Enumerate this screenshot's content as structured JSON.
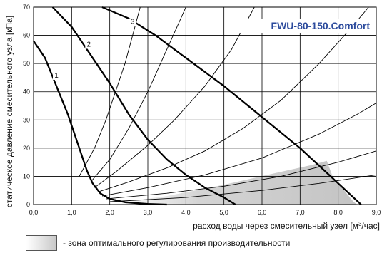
{
  "chart_data": {
    "type": "line",
    "title": "FWU-80-150.Comfort",
    "title_color": "#2b4a9c",
    "xlabel": "расход воды через смесительный узел [м",
    "xlabel_sup": "3",
    "xlabel_end": "/час]",
    "ylabel": "статическое давление смесительного узла [кПа]",
    "xlim": [
      0,
      9
    ],
    "ylim": [
      0,
      70
    ],
    "x_ticks": [
      "0,0",
      "1,0",
      "2,0",
      "3,0",
      "4,0",
      "5,0",
      "6,0",
      "7,0",
      "8,0",
      "9,0"
    ],
    "y_ticks": [
      "0",
      "10",
      "20",
      "30",
      "40",
      "50",
      "60",
      "70"
    ],
    "grid": true,
    "pump_curves": [
      {
        "label": "1",
        "label_at": [
          0.6,
          45
        ],
        "points": [
          [
            0,
            58
          ],
          [
            0.3,
            52
          ],
          [
            0.6,
            42
          ],
          [
            0.9,
            32
          ],
          [
            1.1,
            24
          ],
          [
            1.25,
            18
          ],
          [
            1.4,
            12
          ],
          [
            1.55,
            7.5
          ],
          [
            1.75,
            4
          ],
          [
            2.0,
            2
          ],
          [
            2.4,
            0.8
          ],
          [
            3.0,
            0.2
          ],
          [
            3.5,
            0
          ]
        ]
      },
      {
        "label": "2",
        "label_at": [
          1.45,
          56
        ],
        "points": [
          [
            0.5,
            70
          ],
          [
            1.0,
            63
          ],
          [
            1.55,
            52
          ],
          [
            2.0,
            43
          ],
          [
            2.5,
            32
          ],
          [
            3.0,
            23
          ],
          [
            3.5,
            16
          ],
          [
            4.0,
            10.5
          ],
          [
            4.5,
            6
          ],
          [
            5.0,
            2.5
          ],
          [
            5.3,
            0
          ]
        ]
      },
      {
        "label": "3",
        "label_at": [
          2.6,
          64
        ],
        "points": [
          [
            1.8,
            70
          ],
          [
            2.5,
            66
          ],
          [
            3.2,
            60
          ],
          [
            4.0,
            52
          ],
          [
            5.0,
            42
          ],
          [
            6.0,
            31
          ],
          [
            7.0,
            20
          ],
          [
            7.8,
            10
          ],
          [
            8.6,
            0
          ]
        ]
      }
    ],
    "system_curves": [
      {
        "points": [
          [
            1.2,
            10
          ],
          [
            1.6,
            20
          ],
          [
            1.9,
            30
          ],
          [
            2.15,
            40
          ],
          [
            2.4,
            50
          ],
          [
            2.6,
            60
          ],
          [
            2.8,
            70
          ]
        ]
      },
      {
        "points": [
          [
            1.5,
            8
          ],
          [
            2.0,
            16
          ],
          [
            2.5,
            27
          ],
          [
            3.0,
            40
          ],
          [
            3.4,
            52
          ],
          [
            3.8,
            64
          ],
          [
            4.0,
            70
          ]
        ]
      },
      {
        "points": [
          [
            1.6,
            6
          ],
          [
            2.2,
            12
          ],
          [
            3.0,
            21
          ],
          [
            3.7,
            30
          ],
          [
            4.5,
            42
          ],
          [
            5.2,
            55
          ],
          [
            5.8,
            70
          ]
        ]
      },
      {
        "points": [
          [
            1.7,
            4.5
          ],
          [
            2.5,
            8
          ],
          [
            3.5,
            13
          ],
          [
            4.5,
            19
          ],
          [
            5.5,
            27
          ],
          [
            6.5,
            37
          ],
          [
            7.5,
            50
          ],
          [
            8.3,
            62
          ],
          [
            8.8,
            70
          ]
        ]
      },
      {
        "points": [
          [
            1.8,
            3
          ],
          [
            3.0,
            6
          ],
          [
            4.5,
            10.5
          ],
          [
            6.0,
            16.5
          ],
          [
            7.5,
            25
          ],
          [
            8.5,
            32
          ],
          [
            9.0,
            36
          ]
        ]
      },
      {
        "points": [
          [
            1.9,
            2
          ],
          [
            3.5,
            4
          ],
          [
            5.0,
            6.5
          ],
          [
            6.5,
            10
          ],
          [
            8.0,
            15
          ],
          [
            9.0,
            19
          ]
        ]
      },
      {
        "points": [
          [
            2.0,
            1
          ],
          [
            4.0,
            2.5
          ],
          [
            6.0,
            5
          ],
          [
            7.5,
            7.5
          ],
          [
            9.0,
            10.5
          ]
        ]
      }
    ],
    "optimal_zone": {
      "points": [
        [
          2.1,
          0.5
        ],
        [
          3.5,
          3
        ],
        [
          5.0,
          7
        ],
        [
          6.3,
          11
        ],
        [
          7.3,
          14
        ],
        [
          7.7,
          15.5
        ],
        [
          7.85,
          10
        ],
        [
          8.4,
          1
        ],
        [
          8.5,
          0
        ],
        [
          2.1,
          0
        ]
      ],
      "fill": "#cccccc"
    },
    "legend_label": "- зона оптимального регулирования производительности"
  }
}
